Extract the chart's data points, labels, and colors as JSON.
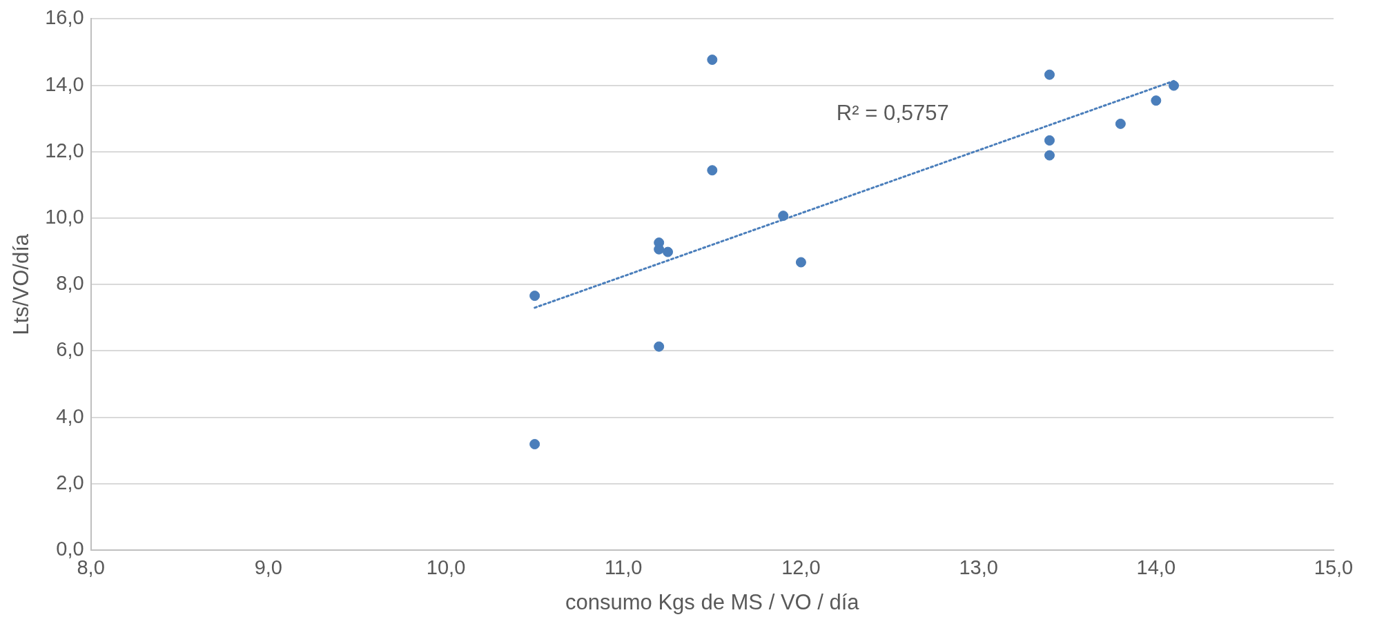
{
  "chart_data": {
    "type": "scatter",
    "xlabel": "consumo Kgs de MS / VO / día",
    "ylabel": "Lts/VO/día",
    "series": [
      {
        "color": "#4a7ebb",
        "marker": "circle",
        "x": [
          10.5,
          10.5,
          11.2,
          11.2,
          11.25,
          11.2,
          11.5,
          11.5,
          11.9,
          12.0,
          13.4,
          13.4,
          13.4,
          13.8,
          14.0,
          14.1
        ],
        "values": [
          7.66,
          3.19,
          9.26,
          9.06,
          8.98,
          6.13,
          14.77,
          11.44,
          10.07,
          8.67,
          14.32,
          12.34,
          11.89,
          12.84,
          13.54,
          13.99
        ]
      },
      {
        "type": "line",
        "color": "#4a7ebb",
        "line_style": "dotted",
        "marker": "none",
        "x": [
          10.5,
          14.1
        ],
        "values": [
          7.3,
          14.13
        ]
      }
    ],
    "xlim": [
      8,
      15
    ],
    "ylim": [
      0,
      16
    ],
    "xticks": [
      {
        "value": 8,
        "label": "8,0"
      },
      {
        "value": 9,
        "label": "9,0"
      },
      {
        "value": 10,
        "label": "10,0"
      },
      {
        "value": 11,
        "label": "11,0"
      },
      {
        "value": 12,
        "label": "12,0"
      },
      {
        "value": 13,
        "label": "13,0"
      },
      {
        "value": 14,
        "label": "14,0"
      },
      {
        "value": 15,
        "label": "15,0"
      }
    ],
    "yticks": [
      {
        "value": 0,
        "label": "0,0"
      },
      {
        "value": 2,
        "label": "2,0"
      },
      {
        "value": 4,
        "label": "4,0"
      },
      {
        "value": 6,
        "label": "6,0"
      },
      {
        "value": 8,
        "label": "8,0"
      },
      {
        "value": 10,
        "label": "10,0"
      },
      {
        "value": 12,
        "label": "12,0"
      },
      {
        "value": 14,
        "label": "14,0"
      },
      {
        "value": 16,
        "label": "16,0"
      }
    ],
    "annotations": [
      "R² = 0,5757"
    ],
    "grid": "y",
    "legend": false
  }
}
